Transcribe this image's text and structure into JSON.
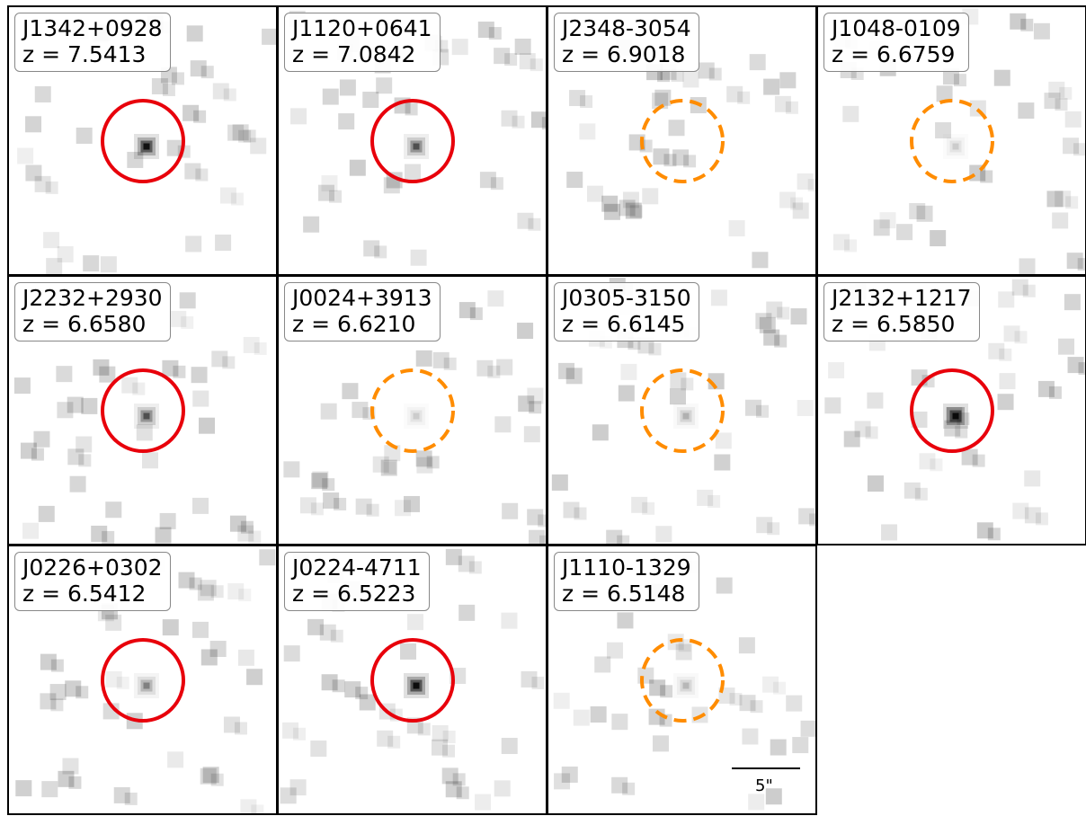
{
  "panels": [
    {
      "name": "J1342+0928",
      "z": "z = 7.5413",
      "detection": "solid"
    },
    {
      "name": "J1120+0641",
      "z": "z = 7.0842",
      "detection": "solid"
    },
    {
      "name": "J2348-3054",
      "z": "z = 6.9018",
      "detection": "dashed"
    },
    {
      "name": "J1048-0109",
      "z": "z = 6.6759",
      "detection": "dashed"
    },
    {
      "name": "J2232+2930",
      "z": "z = 6.6580",
      "detection": "solid"
    },
    {
      "name": "J0024+3913",
      "z": "z = 6.6210",
      "detection": "dashed"
    },
    {
      "name": "J0305-3150",
      "z": "z = 6.6145",
      "detection": "dashed"
    },
    {
      "name": "J2132+1217",
      "z": "z = 6.5850",
      "detection": "solid"
    },
    {
      "name": "J0226+0302",
      "z": "z = 6.5412",
      "detection": "solid"
    },
    {
      "name": "J0224-4711",
      "z": "z = 6.5223",
      "detection": "solid"
    },
    {
      "name": "J1110-1329",
      "z": "z = 6.5148",
      "detection": "dashed"
    }
  ],
  "scale_bar": {
    "label": "5\""
  },
  "colors": {
    "solid_circle": "#e8000b",
    "dashed_circle": "#ff8c00"
  }
}
